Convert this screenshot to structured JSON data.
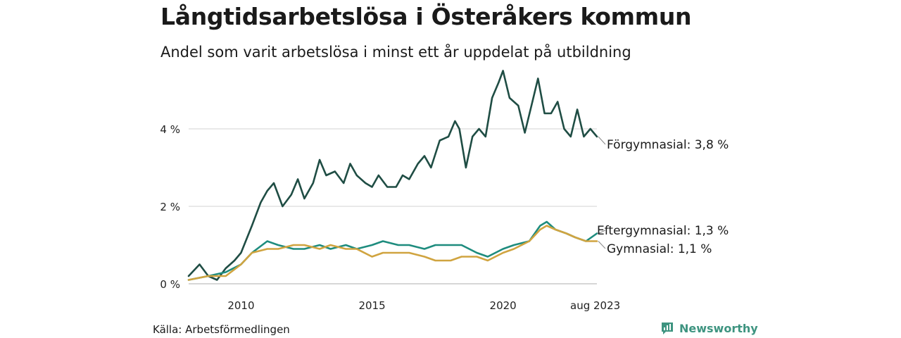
{
  "title": "Långtidsarbetslösa i Österåkers kommun",
  "subtitle": "Andel som varit arbetslösa i minst ett år uppdelat på utbildning",
  "source": "Källa: Arbetsförmedlingen",
  "brand": {
    "name": "Newsworthy",
    "icon": "newsworthy-logo-icon",
    "color": "#3e9480"
  },
  "chart_data": {
    "type": "line",
    "title": "Långtidsarbetslösa i Österåkers kommun",
    "subtitle": "Andel som varit arbetslösa i minst ett år uppdelat på utbildning",
    "x_start": "2008-01",
    "x_end": "2023-08",
    "x_ticks": [
      {
        "x": "2010-01",
        "label": "2010"
      },
      {
        "x": "2015-01",
        "label": "2015"
      },
      {
        "x": "2020-01",
        "label": "2020"
      },
      {
        "x": "2023-08",
        "label": "aug 2023"
      }
    ],
    "y_ticks": [
      {
        "y": 0,
        "label": "0 %"
      },
      {
        "y": 2,
        "label": "2 %"
      },
      {
        "y": 4,
        "label": "4 %"
      }
    ],
    "ylim": [
      0,
      5.6
    ],
    "grid": true,
    "series": [
      {
        "name": "Förgymnasial",
        "end_label": "Förgymnasial: 3,8 %",
        "color": "#1f4d44",
        "points": [
          [
            "2008-01",
            0.2
          ],
          [
            "2008-06",
            0.5
          ],
          [
            "2008-10",
            0.2
          ],
          [
            "2009-02",
            0.1
          ],
          [
            "2009-06",
            0.4
          ],
          [
            "2009-10",
            0.6
          ],
          [
            "2010-01",
            0.8
          ],
          [
            "2010-06",
            1.5
          ],
          [
            "2010-10",
            2.1
          ],
          [
            "2011-01",
            2.4
          ],
          [
            "2011-04",
            2.6
          ],
          [
            "2011-08",
            2.0
          ],
          [
            "2011-12",
            2.3
          ],
          [
            "2012-03",
            2.7
          ],
          [
            "2012-06",
            2.2
          ],
          [
            "2012-10",
            2.6
          ],
          [
            "2013-01",
            3.2
          ],
          [
            "2013-04",
            2.8
          ],
          [
            "2013-08",
            2.9
          ],
          [
            "2013-12",
            2.6
          ],
          [
            "2014-03",
            3.1
          ],
          [
            "2014-06",
            2.8
          ],
          [
            "2014-10",
            2.6
          ],
          [
            "2015-01",
            2.5
          ],
          [
            "2015-04",
            2.8
          ],
          [
            "2015-08",
            2.5
          ],
          [
            "2015-12",
            2.5
          ],
          [
            "2016-03",
            2.8
          ],
          [
            "2016-06",
            2.7
          ],
          [
            "2016-10",
            3.1
          ],
          [
            "2017-01",
            3.3
          ],
          [
            "2017-04",
            3.0
          ],
          [
            "2017-08",
            3.7
          ],
          [
            "2017-12",
            3.8
          ],
          [
            "2018-03",
            4.2
          ],
          [
            "2018-05",
            4.0
          ],
          [
            "2018-08",
            3.0
          ],
          [
            "2018-11",
            3.8
          ],
          [
            "2019-02",
            4.0
          ],
          [
            "2019-05",
            3.8
          ],
          [
            "2019-08",
            4.8
          ],
          [
            "2019-11",
            5.2
          ],
          [
            "2020-01",
            5.5
          ],
          [
            "2020-04",
            4.8
          ],
          [
            "2020-08",
            4.6
          ],
          [
            "2020-11",
            3.9
          ],
          [
            "2021-02",
            4.6
          ],
          [
            "2021-05",
            5.3
          ],
          [
            "2021-08",
            4.4
          ],
          [
            "2021-11",
            4.4
          ],
          [
            "2022-02",
            4.7
          ],
          [
            "2022-05",
            4.0
          ],
          [
            "2022-08",
            3.8
          ],
          [
            "2022-11",
            4.5
          ],
          [
            "2023-02",
            3.8
          ],
          [
            "2023-05",
            4.0
          ],
          [
            "2023-08",
            3.8
          ]
        ]
      },
      {
        "name": "Eftergymnasial",
        "end_label": "Eftergymnasial: 1,3 %",
        "color": "#1e8c7e",
        "points": [
          [
            "2008-01",
            0.1
          ],
          [
            "2008-10",
            0.2
          ],
          [
            "2009-06",
            0.3
          ],
          [
            "2010-01",
            0.5
          ],
          [
            "2010-06",
            0.8
          ],
          [
            "2011-01",
            1.1
          ],
          [
            "2011-06",
            1.0
          ],
          [
            "2012-01",
            0.9
          ],
          [
            "2012-06",
            0.9
          ],
          [
            "2013-01",
            1.0
          ],
          [
            "2013-06",
            0.9
          ],
          [
            "2014-01",
            1.0
          ],
          [
            "2014-06",
            0.9
          ],
          [
            "2015-01",
            1.0
          ],
          [
            "2015-06",
            1.1
          ],
          [
            "2016-01",
            1.0
          ],
          [
            "2016-06",
            1.0
          ],
          [
            "2017-01",
            0.9
          ],
          [
            "2017-06",
            1.0
          ],
          [
            "2018-01",
            1.0
          ],
          [
            "2018-06",
            1.0
          ],
          [
            "2019-01",
            0.8
          ],
          [
            "2019-06",
            0.7
          ],
          [
            "2020-01",
            0.9
          ],
          [
            "2020-06",
            1.0
          ],
          [
            "2021-01",
            1.1
          ],
          [
            "2021-06",
            1.5
          ],
          [
            "2021-09",
            1.6
          ],
          [
            "2022-01",
            1.4
          ],
          [
            "2022-06",
            1.3
          ],
          [
            "2022-10",
            1.2
          ],
          [
            "2023-03",
            1.1
          ],
          [
            "2023-08",
            1.3
          ]
        ]
      },
      {
        "name": "Gymnasial",
        "end_label": "Gymnasial: 1,1 %",
        "color": "#d0a440",
        "points": [
          [
            "2008-01",
            0.1
          ],
          [
            "2008-10",
            0.2
          ],
          [
            "2009-06",
            0.2
          ],
          [
            "2010-01",
            0.5
          ],
          [
            "2010-06",
            0.8
          ],
          [
            "2011-01",
            0.9
          ],
          [
            "2011-06",
            0.9
          ],
          [
            "2012-01",
            1.0
          ],
          [
            "2012-06",
            1.0
          ],
          [
            "2013-01",
            0.9
          ],
          [
            "2013-06",
            1.0
          ],
          [
            "2014-01",
            0.9
          ],
          [
            "2014-06",
            0.9
          ],
          [
            "2015-01",
            0.7
          ],
          [
            "2015-06",
            0.8
          ],
          [
            "2016-01",
            0.8
          ],
          [
            "2016-06",
            0.8
          ],
          [
            "2017-01",
            0.7
          ],
          [
            "2017-06",
            0.6
          ],
          [
            "2018-01",
            0.6
          ],
          [
            "2018-06",
            0.7
          ],
          [
            "2019-01",
            0.7
          ],
          [
            "2019-06",
            0.6
          ],
          [
            "2020-01",
            0.8
          ],
          [
            "2020-06",
            0.9
          ],
          [
            "2021-01",
            1.1
          ],
          [
            "2021-06",
            1.4
          ],
          [
            "2021-09",
            1.5
          ],
          [
            "2022-01",
            1.4
          ],
          [
            "2022-06",
            1.3
          ],
          [
            "2022-10",
            1.2
          ],
          [
            "2023-03",
            1.1
          ],
          [
            "2023-08",
            1.1
          ]
        ]
      }
    ]
  }
}
